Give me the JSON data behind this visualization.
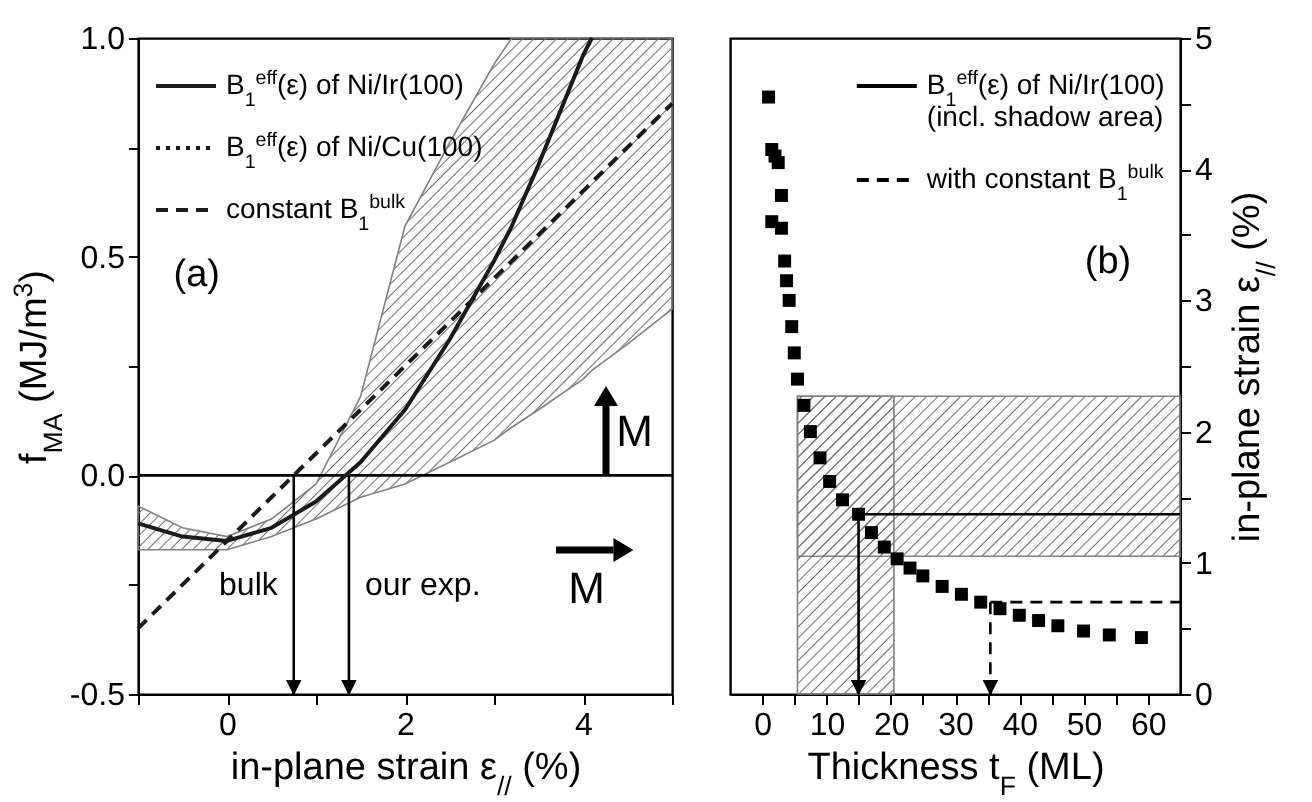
{
  "chart_data": [
    {
      "type": "line",
      "xlabel": "in-plane strain ε$_{//}$ (%)",
      "ylabel": "f$_{MA}$ (MJ/m$^{3}$)",
      "xlim": [
        -1,
        5
      ],
      "ylim": [
        -0.5,
        1.0
      ],
      "xticks": [
        {
          "value": -1,
          "label": null
        },
        0,
        {
          "value": 1,
          "label": null
        },
        2,
        {
          "value": 3,
          "label": null
        },
        4,
        {
          "value": 5,
          "label": null
        }
      ],
      "yticks": [
        -0.5,
        {
          "value": -0.25,
          "label": null
        },
        {
          "value": 0,
          "label": "0.0"
        },
        {
          "value": 0.25,
          "label": null
        },
        0.5,
        {
          "value": 0.75,
          "label": null
        },
        {
          "value": 1,
          "label": "1.0"
        }
      ],
      "legend": "top left",
      "series": [
        {
          "name": "B$_{1}$$^{eff}$(ε) of Ni/Ir(100)",
          "color": "#1a1a1a",
          "line_style": "solid",
          "x": [
            -1,
            -0.5,
            0,
            0.5,
            1,
            1.5,
            2,
            2.5,
            3,
            3.2,
            3.5,
            4,
            4.1,
            4.5,
            5
          ],
          "values": [
            -0.11,
            -0.14,
            -0.15,
            -0.12,
            -0.06,
            0.03,
            0.15,
            0.31,
            0.49,
            0.57,
            0.71,
            0.96,
            1.0,
            null,
            null
          ],
          "lower": [
            -0.17,
            -0.17,
            -0.17,
            -0.14,
            -0.1,
            -0.05,
            -0.02,
            0.03,
            0.08,
            0.11,
            0.15,
            0.22,
            0.24,
            0.3,
            0.38
          ],
          "upper": [
            -0.07,
            -0.12,
            -0.14,
            -0.1,
            -0.02,
            0.18,
            0.57,
            0.76,
            0.94,
            1.0,
            1.0,
            1.0,
            1.0,
            1.0,
            1.0
          ]
        },
        {
          "name": "B$_{1}$$^{eff}$(ε) of Ni/Cu(100)",
          "color": "#1a1a1a",
          "line_style": "dotted"
        },
        {
          "name": "constant B$_{1}$$^{bulk}$",
          "color": "#1a1a1a",
          "line_style": "dashed",
          "x": [
            -1,
            5
          ],
          "values": [
            -0.35,
            0.85
          ]
        }
      ],
      "ref_lines": [
        {
          "axis": "y",
          "value": 0,
          "color": "#000000"
        }
      ],
      "annotations": [
        "(a)",
        "M",
        "M",
        {
          "text": "bulk",
          "x": 0.75,
          "y": 0
        },
        {
          "text": "our exp.",
          "x": 1.37,
          "y": 0
        }
      ]
    },
    {
      "type": "scatter",
      "xlabel": "Thickness t$_{F}$ (ML)",
      "y2label": "in-plane strain ε$_{//}$ (%)",
      "xlim": [
        -5,
        65
      ],
      "y2lim": [
        0,
        5
      ],
      "xticks": [
        0,
        {
          "value": 5,
          "label": null
        },
        10,
        {
          "value": 15,
          "label": null
        },
        20,
        {
          "value": 25,
          "label": null
        },
        30,
        {
          "value": 35,
          "label": null
        },
        40,
        {
          "value": 45,
          "label": null
        },
        50,
        {
          "value": 55,
          "label": null
        },
        60
      ],
      "y2ticks": [
        0,
        {
          "value": 0.5,
          "label": null
        },
        1,
        {
          "value": 1.5,
          "label": null
        },
        2,
        {
          "value": 2.5,
          "label": null
        },
        3,
        {
          "value": 3.5,
          "label": null
        },
        4,
        {
          "value": 4.5,
          "label": null
        },
        5
      ],
      "marker": "square",
      "legend": "top right",
      "series": [
        {
          "color": "#000000",
          "axis": "y2",
          "x": [
            1,
            1.5,
            2,
            2.5,
            3,
            1.5,
            3,
            3.5,
            3.8,
            4.2,
            4.6,
            5,
            5.5,
            6.5,
            7.5,
            9,
            10.5,
            12.5,
            15,
            17,
            19,
            21,
            23,
            25,
            28,
            31,
            34,
            37,
            40,
            43,
            46,
            50,
            54,
            59
          ],
          "values": [
            4.55,
            4.15,
            4.1,
            4.05,
            3.8,
            3.6,
            3.55,
            3.3,
            3.15,
            3.0,
            2.8,
            2.6,
            2.4,
            2.2,
            2.0,
            1.8,
            1.62,
            1.48,
            1.37,
            1.23,
            1.12,
            1.03,
            0.96,
            0.9,
            0.82,
            0.76,
            0.7,
            0.65,
            0.6,
            0.56,
            0.52,
            0.48,
            0.45,
            0.43
          ]
        }
      ],
      "bands": [
        {
          "axis": "y2",
          "from": 1.05,
          "to": 2.27
        },
        {
          "axis": "x",
          "from": 5.5,
          "to": 20.5
        }
      ],
      "ref_lines": [
        {
          "axis": "y2",
          "value": 1.37,
          "label": "B$_{1}$$^{eff}$(ε) of Ni/Ir(100)\n(incl. shadow area)",
          "line_style": "solid",
          "color": "#000000"
        },
        {
          "axis": "x",
          "value": 15,
          "line_style": "solid",
          "color": "#000000"
        },
        {
          "axis": "y2",
          "value": 0.7,
          "label": "with constant B$_{1}$$^{bulk}$",
          "line_style": "dashed",
          "color": "#000000"
        },
        {
          "axis": "x",
          "value": 35.5,
          "line_style": "dashed",
          "color": "#000000"
        }
      ],
      "annotations": [
        "(b)"
      ]
    }
  ]
}
